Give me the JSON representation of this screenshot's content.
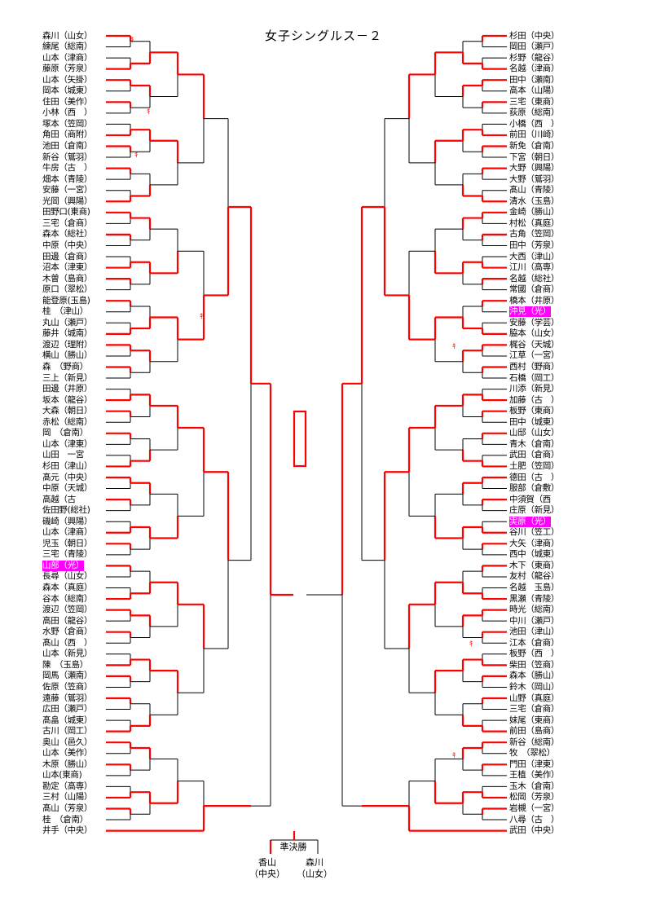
{
  "title": "女子シングルス－２",
  "left_players": [
    {
      "name": "森川（山女）",
      "hl": false
    },
    {
      "name": "練尾（総南）",
      "hl": false
    },
    {
      "name": "山本（津商）",
      "hl": false
    },
    {
      "name": "藤原（芳泉）",
      "hl": false
    },
    {
      "name": "山本（矢掛）",
      "hl": false
    },
    {
      "name": "岡本（城東）",
      "hl": false
    },
    {
      "name": "住田（美作）",
      "hl": false
    },
    {
      "name": "小林（西　）",
      "hl": false
    },
    {
      "name": "塚本（笠岡）",
      "hl": false
    },
    {
      "name": "角田（商附）",
      "hl": false
    },
    {
      "name": "池田（倉南）",
      "hl": false
    },
    {
      "name": "新谷（鷲羽）",
      "hl": false
    },
    {
      "name": "牛房（古　）",
      "hl": false
    },
    {
      "name": "畑本（青陵）",
      "hl": false
    },
    {
      "name": "安藤（一宮）",
      "hl": false
    },
    {
      "name": "光岡（興陽）",
      "hl": false
    },
    {
      "name": "田野口(東商)",
      "hl": false
    },
    {
      "name": "三宅（倉商）",
      "hl": false
    },
    {
      "name": "森本（総社）",
      "hl": false
    },
    {
      "name": "中原（中央）",
      "hl": false
    },
    {
      "name": "田邊（倉商）",
      "hl": false
    },
    {
      "name": "沼本（津東）",
      "hl": false
    },
    {
      "name": "木曽（島商）",
      "hl": false
    },
    {
      "name": "原口（翠松）",
      "hl": false
    },
    {
      "name": "能登原(玉島)",
      "hl": false
    },
    {
      "name": "桂　（津山）",
      "hl": false
    },
    {
      "name": "丸山（瀬戸）",
      "hl": false
    },
    {
      "name": "藤井（城南）",
      "hl": false
    },
    {
      "name": "渡辺（理附）",
      "hl": false
    },
    {
      "name": "横山（勝山）",
      "hl": false
    },
    {
      "name": "森　（野商）",
      "hl": false
    },
    {
      "name": "三上（新見）",
      "hl": false
    },
    {
      "name": "田邊（井原）",
      "hl": false
    },
    {
      "name": "坂本（龍谷）",
      "hl": false
    },
    {
      "name": "大森（朝日）",
      "hl": false
    },
    {
      "name": "赤松（総南）",
      "hl": false
    },
    {
      "name": "岡　（倉南）",
      "hl": false
    },
    {
      "name": "山本（津東）",
      "hl": false
    },
    {
      "name": "山田　一宮",
      "hl": false
    },
    {
      "name": "杉田（津山）",
      "hl": false
    },
    {
      "name": "髙元（中央）",
      "hl": false
    },
    {
      "name": "中原（天城）",
      "hl": false
    },
    {
      "name": "高越（古",
      "hl": false
    },
    {
      "name": "佐田野(総社)",
      "hl": false
    },
    {
      "name": "磯崎（興陽）",
      "hl": false
    },
    {
      "name": "山本（津商）",
      "hl": false
    },
    {
      "name": "児玉（朝日）",
      "hl": false
    },
    {
      "name": "三宅（青陵）",
      "hl": false
    },
    {
      "name": "山部（光）",
      "hl": true
    },
    {
      "name": "長尋（山女）",
      "hl": false
    },
    {
      "name": "森本（真庭）",
      "hl": false
    },
    {
      "name": "谷本（総南）",
      "hl": false
    },
    {
      "name": "渡辺（笠岡）",
      "hl": false
    },
    {
      "name": "高田（龍谷）",
      "hl": false
    },
    {
      "name": "水野（倉商）",
      "hl": false
    },
    {
      "name": "髙山（西　）",
      "hl": false
    },
    {
      "name": "山本（新見）",
      "hl": false
    },
    {
      "name": "陳　（玉島）",
      "hl": false
    },
    {
      "name": "岡馬（瀬南）",
      "hl": false
    },
    {
      "name": "佐原（笠商）",
      "hl": false
    },
    {
      "name": "遠藤（鷲羽）",
      "hl": false
    },
    {
      "name": "広田（瀬戸）",
      "hl": false
    },
    {
      "name": "髙畠（城東）",
      "hl": false
    },
    {
      "name": "古川（岡工）",
      "hl": false
    },
    {
      "name": "奥山（邑久）",
      "hl": false
    },
    {
      "name": "山本（美作）",
      "hl": false
    },
    {
      "name": "木原（勝山）",
      "hl": false
    },
    {
      "name": "山本(東商)",
      "hl": false
    },
    {
      "name": "勘定（高専）",
      "hl": false
    },
    {
      "name": "三村（山陽）",
      "hl": false
    },
    {
      "name": "髙山（芳泉）",
      "hl": false
    },
    {
      "name": "桂　（倉南）",
      "hl": false
    },
    {
      "name": "井手（中央）",
      "hl": false
    }
  ],
  "right_players": [
    {
      "name": "杉田（中央）",
      "hl": false
    },
    {
      "name": "岡田（瀬戸）",
      "hl": false
    },
    {
      "name": "杉野（龍谷）",
      "hl": false
    },
    {
      "name": "名越（津商）",
      "hl": false
    },
    {
      "name": "田中（瀬南）",
      "hl": false
    },
    {
      "name": "高本（山陽）",
      "hl": false
    },
    {
      "name": "三宅（東商）",
      "hl": false
    },
    {
      "name": "荻原（総南）",
      "hl": false
    },
    {
      "name": "小橋（西　）",
      "hl": false
    },
    {
      "name": "前田（川崎）",
      "hl": false
    },
    {
      "name": "新免（倉南）",
      "hl": false
    },
    {
      "name": "下宮（朝日）",
      "hl": false
    },
    {
      "name": "大野（興陽）",
      "hl": false
    },
    {
      "name": "大野（鷲羽）",
      "hl": false
    },
    {
      "name": "髙山（青陵）",
      "hl": false
    },
    {
      "name": "清水（玉島）",
      "hl": false
    },
    {
      "name": "金崎（勝山）",
      "hl": false
    },
    {
      "name": "村松（真庭）",
      "hl": false
    },
    {
      "name": "古角（笠岡）",
      "hl": false
    },
    {
      "name": "田中（芳泉）",
      "hl": false
    },
    {
      "name": "大西（津山）",
      "hl": false
    },
    {
      "name": "江川（高専）",
      "hl": false
    },
    {
      "name": "名越（総社）",
      "hl": false
    },
    {
      "name": "常國（倉商）",
      "hl": false
    },
    {
      "name": "橋本（井原）",
      "hl": false
    },
    {
      "name": "沖見（光）",
      "hl": true
    },
    {
      "name": "安藤（学芸）",
      "hl": false
    },
    {
      "name": "脇本（山女）",
      "hl": false
    },
    {
      "name": "梶谷（天城）",
      "hl": false
    },
    {
      "name": "江草（一宮）",
      "hl": false
    },
    {
      "name": "西村（野商）",
      "hl": false
    },
    {
      "name": "石橋（岡工）",
      "hl": false
    },
    {
      "name": "川添（新見）",
      "hl": false
    },
    {
      "name": "加藤（古　）",
      "hl": false
    },
    {
      "name": "板野（東商）",
      "hl": false
    },
    {
      "name": "田中（城東）",
      "hl": false
    },
    {
      "name": "山邸（山女）",
      "hl": false
    },
    {
      "name": "青木（倉南）",
      "hl": false
    },
    {
      "name": "武田（倉商）",
      "hl": false
    },
    {
      "name": "土肥（笠岡）",
      "hl": false
    },
    {
      "name": "德田（古　）",
      "hl": false
    },
    {
      "name": "服部（倉敷）",
      "hl": false
    },
    {
      "name": "中須賀（西",
      "hl": false
    },
    {
      "name": "庄原（新見）",
      "hl": false
    },
    {
      "name": "実原（光）",
      "hl": true
    },
    {
      "name": "谷川（笠工）",
      "hl": false
    },
    {
      "name": "大矢（津商）",
      "hl": false
    },
    {
      "name": "西中（城東）",
      "hl": false
    },
    {
      "name": "木下（東商）",
      "hl": false
    },
    {
      "name": "友村（龍谷）",
      "hl": false
    },
    {
      "name": "名越　玉島）",
      "hl": false
    },
    {
      "name": "黒瀬（青陵）",
      "hl": false
    },
    {
      "name": "時光（総南）",
      "hl": false
    },
    {
      "name": "中川（瀬戸）",
      "hl": false
    },
    {
      "name": "池田（津山）",
      "hl": false
    },
    {
      "name": "江本（倉商）",
      "hl": false
    },
    {
      "name": "板野（西　）",
      "hl": false
    },
    {
      "name": "柴田（笠商）",
      "hl": false
    },
    {
      "name": "森本（勝山）",
      "hl": false
    },
    {
      "name": "鈴木（岡山）",
      "hl": false
    },
    {
      "name": "山野（真庭）",
      "hl": false
    },
    {
      "name": "三宅（倉商）",
      "hl": false
    },
    {
      "name": "妹尾（東商）",
      "hl": false
    },
    {
      "name": "前田（島商）",
      "hl": false
    },
    {
      "name": "新谷（総南）",
      "hl": false
    },
    {
      "name": "牧　（翠松）",
      "hl": false
    },
    {
      "name": "門田（津東）",
      "hl": false
    },
    {
      "name": "王植（美作）",
      "hl": false
    },
    {
      "name": "玉木（倉南）",
      "hl": false
    },
    {
      "name": "松岡（芳泉）",
      "hl": false
    },
    {
      "name": "岩槻（一宮）",
      "hl": false
    },
    {
      "name": "八尋（古　）",
      "hl": false
    },
    {
      "name": "武田（中央）",
      "hl": false
    }
  ],
  "finals": {
    "label": "準決勝",
    "left_name": "香山",
    "left_school": "（中央）",
    "right_name": "森川",
    "right_school": "（山女）"
  },
  "forfeit_mark": "ｷ",
  "colors": {
    "advance": "#ff0000",
    "line": "#000000",
    "highlight": "#ff00ff"
  }
}
